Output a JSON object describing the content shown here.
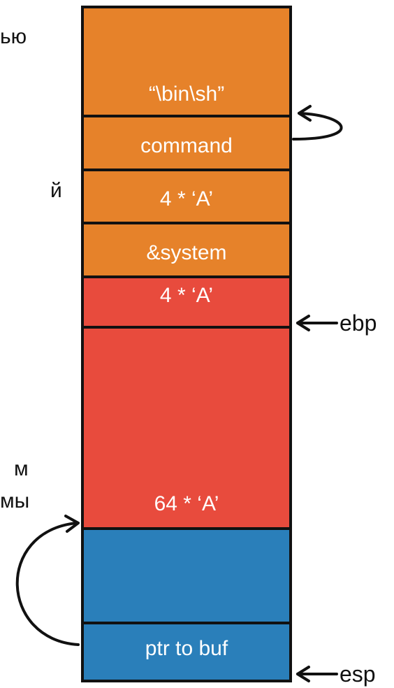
{
  "left_fragments": [
    "ью",
    "й",
    "м",
    "мы"
  ],
  "stack": [
    {
      "label": "“\\bin\\sh”",
      "color": "#E6822A"
    },
    {
      "label": "command",
      "color": "#E6822A"
    },
    {
      "label": "4 * ‘A’",
      "color": "#E6822A"
    },
    {
      "label": "&system",
      "color": "#E6822A"
    },
    {
      "label": "4 * ‘A’",
      "color": "#E84B3D"
    },
    {
      "label": "64 * ‘A’",
      "color": "#E84B3D"
    },
    {
      "label": "",
      "color": "#2A7FBA"
    },
    {
      "label": "ptr to buf",
      "color": "#2A7FBA"
    }
  ],
  "registers": {
    "ebp": "ebp",
    "esp": "esp"
  }
}
